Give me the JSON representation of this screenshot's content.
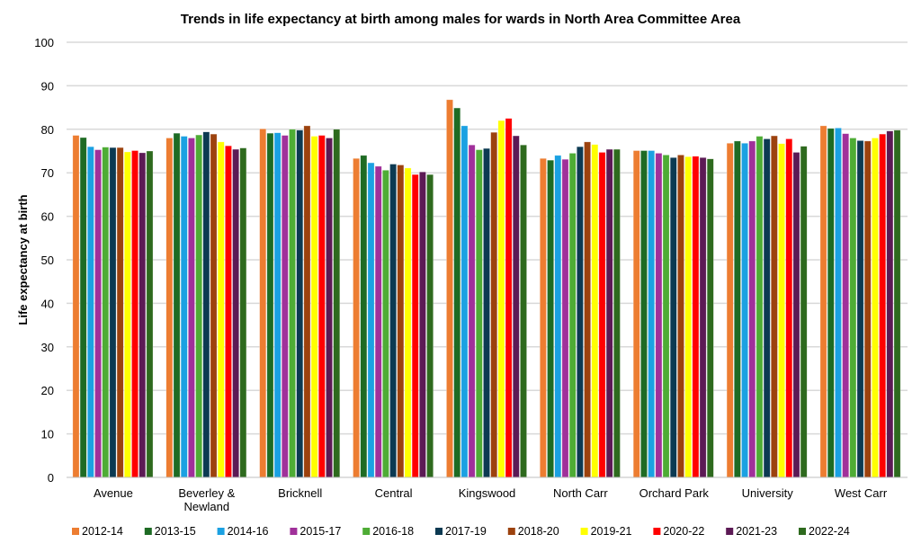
{
  "chart_data": {
    "type": "bar",
    "title": "Trends in life expectancy at birth among males for wards in North Area Committee Area",
    "xlabel": "",
    "ylabel": "Life expectancy at birth",
    "ylim": [
      0,
      100
    ],
    "yticks": [
      0,
      10,
      20,
      30,
      40,
      50,
      60,
      70,
      80,
      90,
      100
    ],
    "grid": true,
    "legend_position": "bottom",
    "categories": [
      "Avenue",
      "Beverley & Newland",
      "Bricknell",
      "Central",
      "Kingswood",
      "North Carr",
      "Orchard Park",
      "University",
      "West Carr"
    ],
    "series": [
      {
        "name": "2012-14",
        "color": "#ED7D31",
        "values": [
          78.6,
          78.0,
          80.1,
          73.3,
          86.8,
          73.3,
          75.1,
          76.8,
          80.8
        ]
      },
      {
        "name": "2013-15",
        "color": "#1E6B24",
        "values": [
          78.1,
          79.1,
          79.1,
          74.0,
          84.9,
          72.9,
          75.1,
          77.3,
          80.2
        ]
      },
      {
        "name": "2014-16",
        "color": "#1BA1E2",
        "values": [
          76.0,
          78.4,
          79.2,
          72.3,
          80.8,
          74.0,
          75.1,
          76.8,
          80.3
        ]
      },
      {
        "name": "2015-17",
        "color": "#A0309A",
        "values": [
          75.3,
          78.0,
          78.6,
          71.5,
          76.4,
          73.1,
          74.5,
          77.3,
          79.0
        ]
      },
      {
        "name": "2016-18",
        "color": "#4EAC35",
        "values": [
          75.9,
          78.7,
          80.0,
          70.6,
          75.3,
          74.5,
          74.1,
          78.4,
          78.0
        ]
      },
      {
        "name": "2017-19",
        "color": "#0C3A52",
        "values": [
          75.8,
          79.4,
          79.8,
          72.0,
          75.6,
          76.0,
          73.5,
          77.8,
          77.4
        ]
      },
      {
        "name": "2018-20",
        "color": "#9C420E",
        "values": [
          75.8,
          78.9,
          80.8,
          71.8,
          79.3,
          77.1,
          74.1,
          78.5,
          77.3
        ]
      },
      {
        "name": "2019-21",
        "color": "#FFFF00",
        "values": [
          74.8,
          77.1,
          78.4,
          71.1,
          82.0,
          76.5,
          73.7,
          76.7,
          78.0
        ]
      },
      {
        "name": "2020-22",
        "color": "#FF0000",
        "values": [
          75.1,
          76.2,
          78.6,
          69.6,
          82.5,
          74.7,
          73.8,
          77.8,
          78.9
        ]
      },
      {
        "name": "2021-23",
        "color": "#5C1A55",
        "values": [
          74.6,
          75.4,
          78.0,
          70.2,
          78.5,
          75.4,
          73.5,
          74.7,
          79.6
        ]
      },
      {
        "name": "2022-24",
        "color": "#2E6A1E",
        "values": [
          75.0,
          75.7,
          80.0,
          69.6,
          76.4,
          75.4,
          73.2,
          76.1,
          79.8
        ]
      }
    ]
  }
}
